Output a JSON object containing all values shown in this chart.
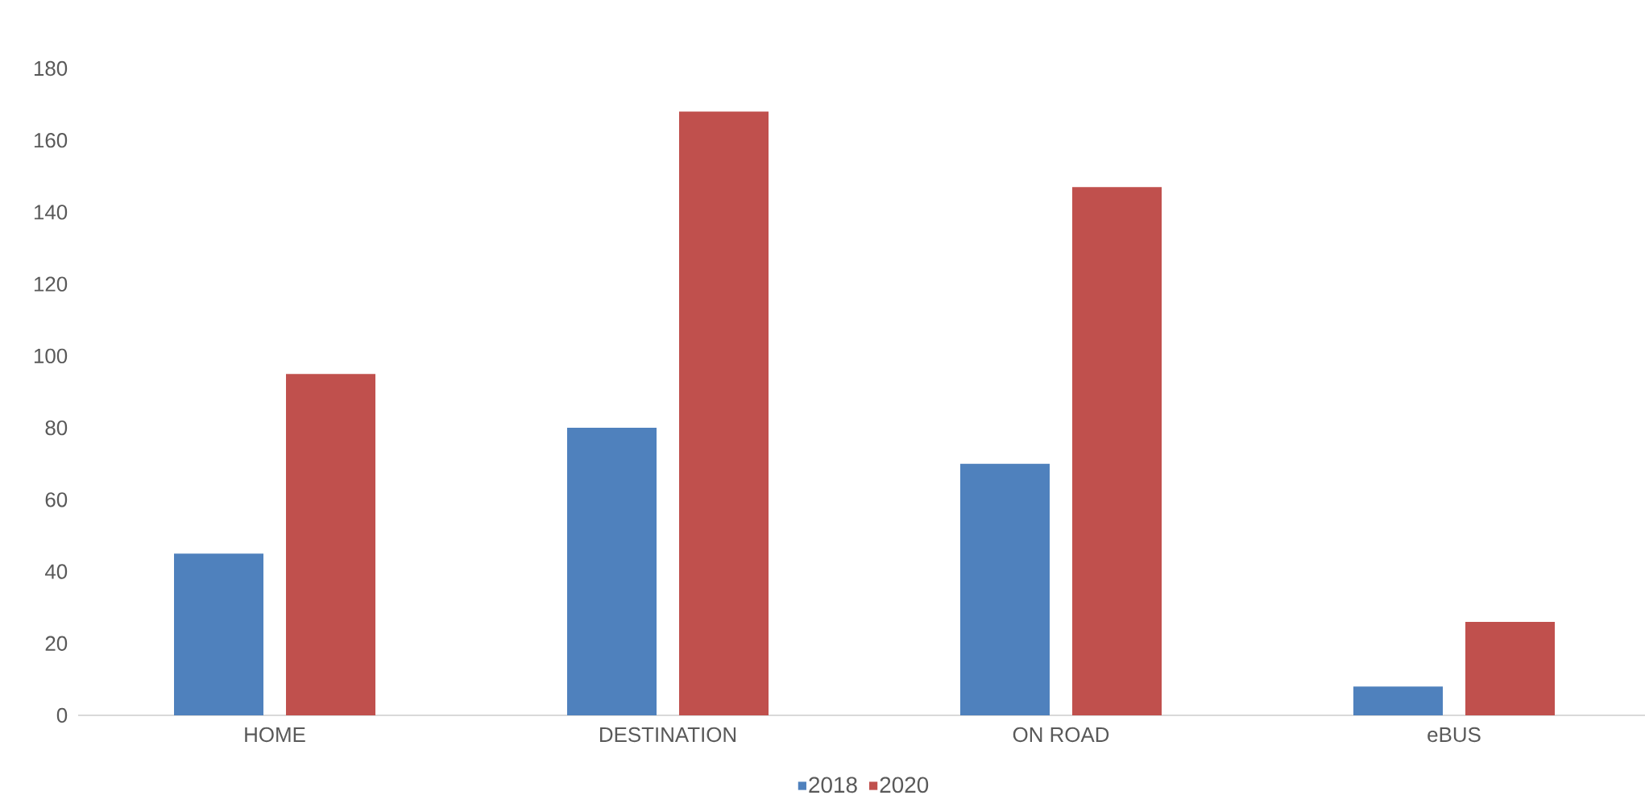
{
  "chart_data": {
    "type": "bar",
    "categories": [
      "HOME",
      "DESTINATION",
      "ON ROAD",
      "eBUS"
    ],
    "series": [
      {
        "name": "2018",
        "color": "#4f81bd",
        "values": [
          45,
          80,
          70,
          8
        ]
      },
      {
        "name": "2020",
        "color": "#c0504d",
        "values": [
          95,
          168,
          147,
          26
        ]
      }
    ],
    "ylim": [
      0,
      180
    ],
    "yticks": [
      0,
      20,
      40,
      60,
      80,
      100,
      120,
      140,
      160,
      180
    ],
    "legend": "bottom"
  }
}
